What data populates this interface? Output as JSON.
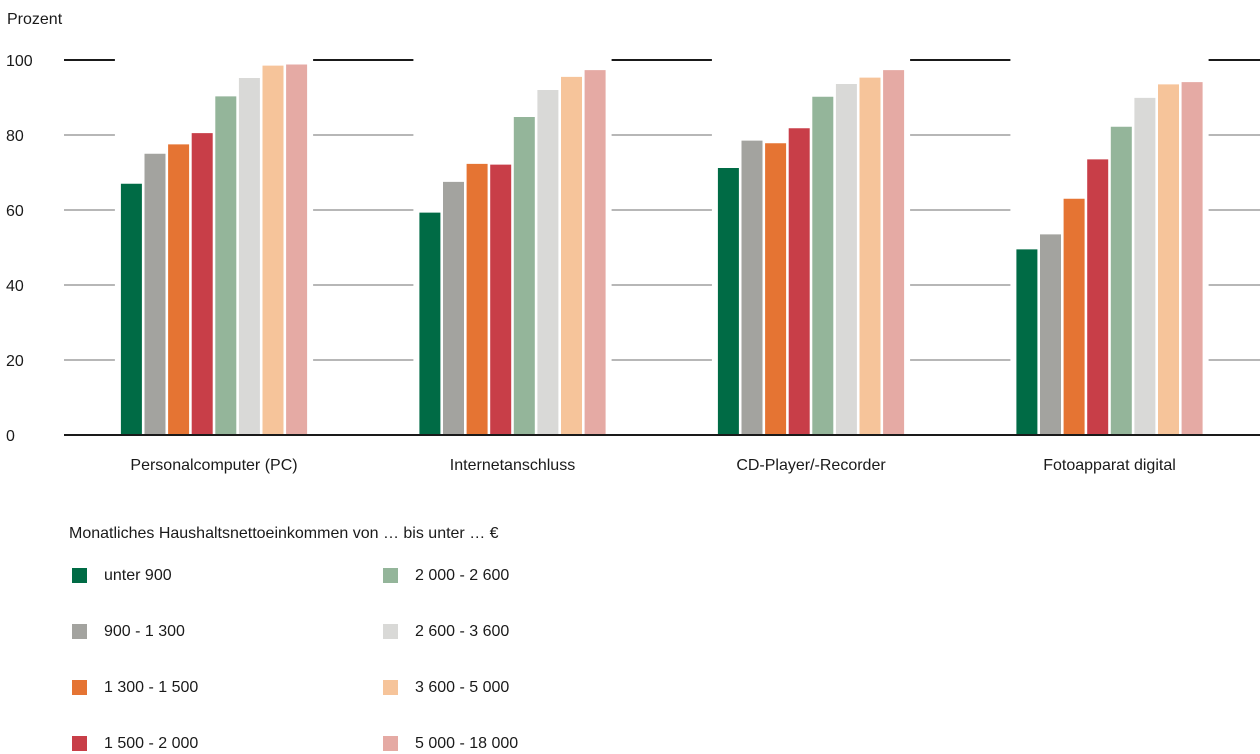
{
  "chart_data": {
    "type": "bar",
    "title": "",
    "ylabel": "Prozent",
    "xlabel": "",
    "ylim": [
      0,
      100
    ],
    "yticks": [
      0,
      20,
      40,
      60,
      80,
      100
    ],
    "grid": true,
    "legend_position": "bottom",
    "legend_title": "Monatliches Haushaltsnettoeinkommen von … bis unter … €",
    "categories": [
      "Personalcomputer (PC)",
      "Internetanschluss",
      "CD-Player/-Recorder",
      "Fotoapparat digital"
    ],
    "series": [
      {
        "name": "unter 900",
        "color": "#006b45",
        "values": [
          67.0,
          59.3,
          71.2,
          49.5
        ]
      },
      {
        "name": "900 - 1 300",
        "color": "#a3a39f",
        "values": [
          75.0,
          67.5,
          78.5,
          53.5
        ]
      },
      {
        "name": "1 300 - 1 500",
        "color": "#e57433",
        "values": [
          77.5,
          72.3,
          77.8,
          63.0
        ]
      },
      {
        "name": "1 500 - 2 000",
        "color": "#c83e48",
        "values": [
          80.5,
          72.1,
          81.8,
          73.5
        ]
      },
      {
        "name": "2 000 - 2 600",
        "color": "#94b59a",
        "values": [
          90.3,
          84.8,
          90.2,
          82.2
        ]
      },
      {
        "name": "2 600 - 3 600",
        "color": "#d9d9d7",
        "values": [
          95.2,
          92.0,
          93.6,
          89.9
        ]
      },
      {
        "name": "3 600 - 5 000",
        "color": "#f6c49a",
        "values": [
          98.5,
          95.5,
          95.3,
          93.5
        ]
      },
      {
        "name": "5 000 - 18 000",
        "color": "#e5aaa4",
        "values": [
          98.8,
          97.3,
          97.3,
          94.1
        ]
      }
    ]
  }
}
